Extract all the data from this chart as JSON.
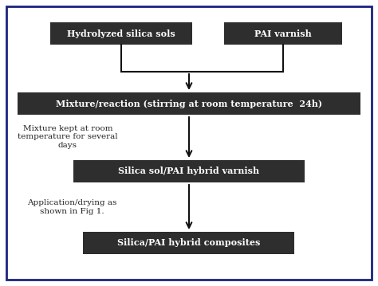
{
  "background_color": "#ffffff",
  "border_color": "#1a237e",
  "box_fill_color": "#2e2e2e",
  "box_text_color": "#ffffff",
  "side_text_color": "#222222",
  "box1_text": "Hydrolyzed silica sols",
  "box2_text": "PAI varnish",
  "box3_text": "Mixture/reaction (stirring at room temperature  24h)",
  "box4_text": "Silica sol/PAI hybrid varnish",
  "box5_text": "Silica/PAI hybrid composites",
  "side_text1": "Mixture kept at room\ntemperature for several\ndays",
  "side_text2": "Application/drying as\nshown in Fig 1.",
  "arrow_color": "#111111",
  "fig_width": 4.74,
  "fig_height": 3.59,
  "dpi": 100
}
